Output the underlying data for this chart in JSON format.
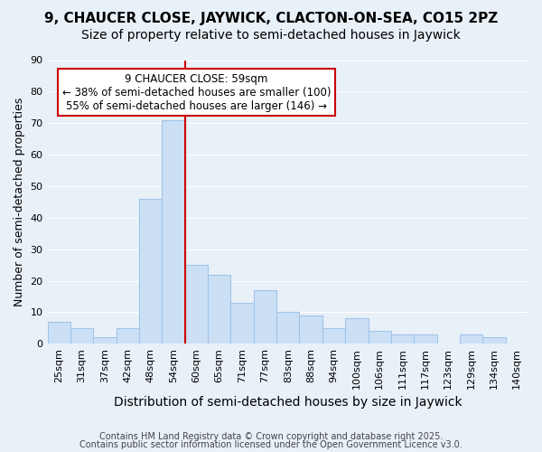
{
  "title": "9, CHAUCER CLOSE, JAYWICK, CLACTON-ON-SEA, CO15 2PZ",
  "subtitle": "Size of property relative to semi-detached houses in Jaywick",
  "xlabel": "Distribution of semi-detached houses by size in Jaywick",
  "ylabel": "Number of semi-detached properties",
  "bar_labels": [
    "25sqm",
    "31sqm",
    "37sqm",
    "42sqm",
    "48sqm",
    "54sqm",
    "60sqm",
    "65sqm",
    "71sqm",
    "77sqm",
    "83sqm",
    "88sqm",
    "94sqm",
    "100sqm",
    "106sqm",
    "111sqm",
    "117sqm",
    "123sqm",
    "129sqm",
    "134sqm",
    "140sqm"
  ],
  "bar_values": [
    7,
    5,
    2,
    5,
    46,
    71,
    25,
    22,
    13,
    17,
    10,
    9,
    5,
    8,
    4,
    3,
    3,
    0,
    3,
    2,
    0
  ],
  "bar_color": "#cce0f5",
  "bar_edge_color": "#a0c4e8",
  "vline_x": 5.5,
  "vline_color": "#cc0000",
  "annotation_title": "9 CHAUCER CLOSE: 59sqm",
  "annotation_line1": "← 38% of semi-detached houses are smaller (100)",
  "annotation_line2": "55% of semi-detached houses are larger (146) →",
  "annotation_box_color": "#ffffff",
  "annotation_box_edge": "#cc0000",
  "ylim": [
    0,
    90
  ],
  "yticks": [
    0,
    10,
    20,
    30,
    40,
    50,
    60,
    70,
    80,
    90
  ],
  "bg_color": "#e8f0f8",
  "plot_bg_color": "#e8f0f8",
  "footer1": "Contains HM Land Registry data © Crown copyright and database right 2025.",
  "footer2": "Contains public sector information licensed under the Open Government Licence v3.0.",
  "title_fontsize": 11,
  "subtitle_fontsize": 10,
  "xlabel_fontsize": 10,
  "ylabel_fontsize": 9,
  "tick_fontsize": 8,
  "annotation_fontsize": 8.5,
  "footer_fontsize": 7
}
